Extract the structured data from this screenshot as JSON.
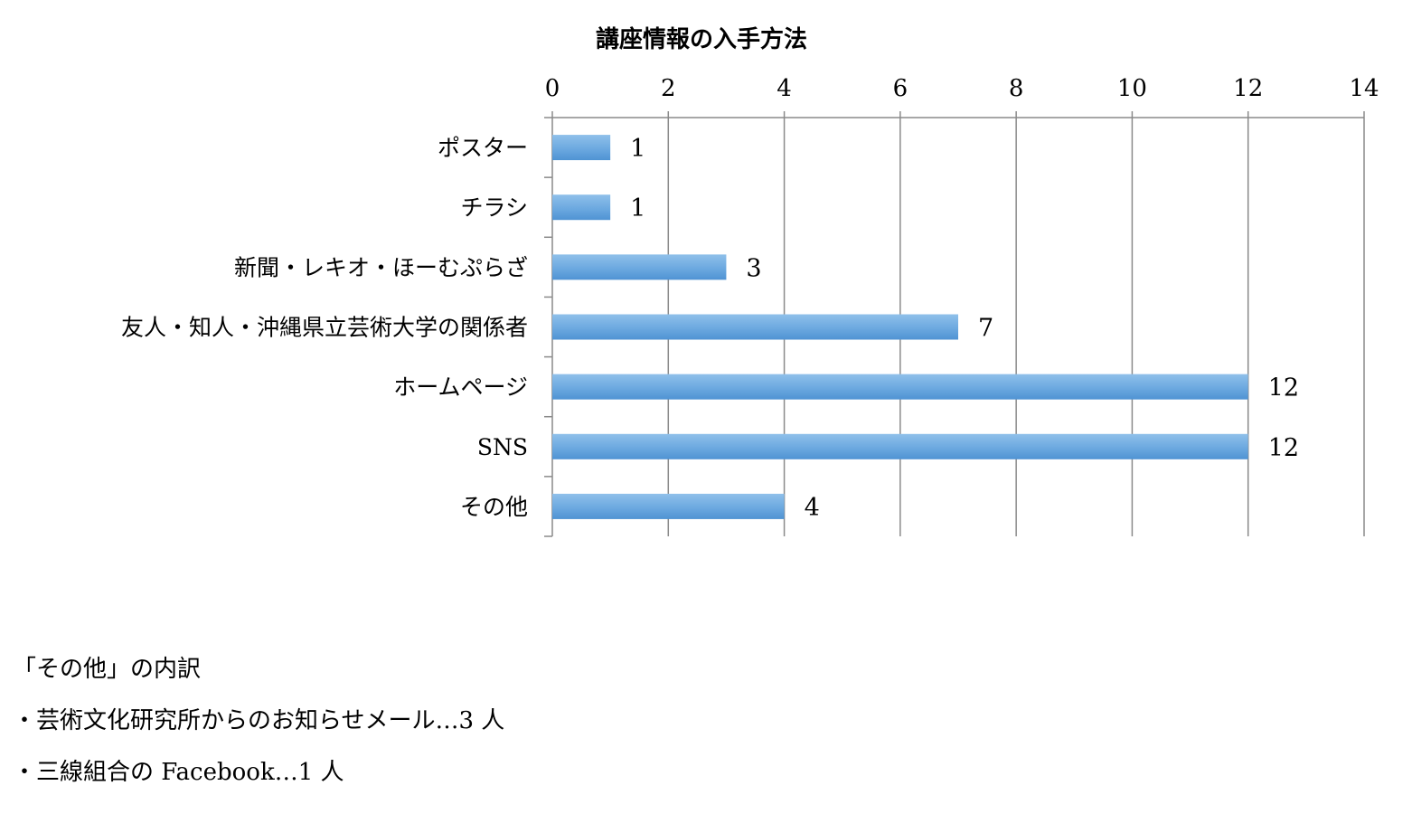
{
  "chart_data": {
    "type": "bar",
    "orientation": "horizontal",
    "title": "講座情報の入手方法",
    "categories": [
      "ポスター",
      "チラシ",
      "新聞・レキオ・ほーむぷらざ",
      "友人・知人・沖縄県立芸術大学の関係者",
      "ホームページ",
      "SNS",
      "その他"
    ],
    "values": [
      1,
      1,
      3,
      7,
      12,
      12,
      4
    ],
    "xlim": [
      0,
      14
    ],
    "ticks": [
      "0",
      "2",
      "4",
      "6",
      "8",
      "10",
      "12",
      "14"
    ],
    "xaxis_position": "top",
    "grid": true,
    "legend": "none",
    "bar_color": "#5B9BD5"
  },
  "notes": {
    "heading": "「その他」の内訳",
    "items": [
      "・芸術文化研究所からのお知らせメール…3 人",
      "・三線組合の Facebook…1 人"
    ]
  }
}
